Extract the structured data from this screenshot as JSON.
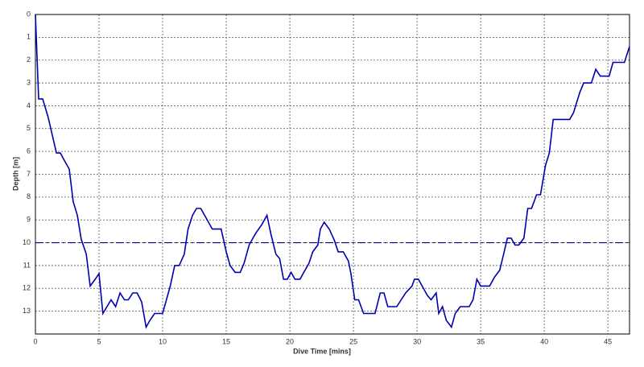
{
  "chart_data": {
    "type": "line",
    "xlabel": "Dive Time [mins]",
    "ylabel": "Depth [m]",
    "x": [
      0,
      0.25,
      0.57,
      1.0,
      1.65,
      1.96,
      2.28,
      2.66,
      2.97,
      3.3,
      3.6,
      4.0,
      4.3,
      4.7,
      5.0,
      5.3,
      5.95,
      6.3,
      6.65,
      7.0,
      7.3,
      7.65,
      8.0,
      8.35,
      8.7,
      9.0,
      9.37,
      10.0,
      10.6,
      10.95,
      11.3,
      11.7,
      12.0,
      12.35,
      12.66,
      13.0,
      13.4,
      13.9,
      14.6,
      15.0,
      15.3,
      15.7,
      16.1,
      16.4,
      16.8,
      17.3,
      17.8,
      18.2,
      18.5,
      18.9,
      19.2,
      19.5,
      19.8,
      20.1,
      20.4,
      20.8,
      21.1,
      21.5,
      21.8,
      22.2,
      22.4,
      22.7,
      23.1,
      23.5,
      23.8,
      24.2,
      24.6,
      24.8,
      25.1,
      25.4,
      25.8,
      26.7,
      27.1,
      27.4,
      27.7,
      28.4,
      29.1,
      29.6,
      29.8,
      30.1,
      30.4,
      30.8,
      31.1,
      31.5,
      31.7,
      32.0,
      32.3,
      32.7,
      33.0,
      33.4,
      34.1,
      34.4,
      34.7,
      35.0,
      35.7,
      36.1,
      36.5,
      36.8,
      37.1,
      37.4,
      37.7,
      38.0,
      38.4,
      38.7,
      39.0,
      39.4,
      39.7,
      40.1,
      40.4,
      40.7,
      42.0,
      42.3,
      42.8,
      43.1,
      43.7,
      44.05,
      44.4,
      45.1,
      45.4,
      46.3,
      46.7
    ],
    "values": [
      0,
      3.7,
      3.7,
      4.5,
      6.07,
      6.07,
      6.4,
      6.77,
      8.2,
      8.8,
      9.85,
      10.5,
      11.9,
      11.6,
      11.35,
      13.1,
      12.5,
      12.8,
      12.2,
      12.5,
      12.5,
      12.2,
      12.2,
      12.6,
      13.7,
      13.4,
      13.1,
      13.1,
      11.9,
      11.0,
      11.0,
      10.5,
      9.4,
      8.8,
      8.5,
      8.5,
      8.9,
      9.4,
      9.4,
      10.4,
      11.0,
      11.3,
      11.3,
      10.9,
      10.1,
      9.6,
      9.2,
      8.8,
      9.6,
      10.5,
      10.7,
      11.6,
      11.6,
      11.3,
      11.6,
      11.6,
      11.3,
      10.9,
      10.4,
      10.1,
      9.4,
      9.1,
      9.4,
      9.9,
      10.4,
      10.4,
      10.8,
      11.35,
      12.5,
      12.5,
      13.1,
      13.1,
      12.2,
      12.2,
      12.8,
      12.8,
      12.2,
      11.9,
      11.6,
      11.6,
      11.9,
      12.3,
      12.5,
      12.2,
      13.1,
      12.8,
      13.4,
      13.7,
      13.1,
      12.8,
      12.8,
      12.5,
      11.6,
      11.9,
      11.9,
      11.5,
      11.2,
      10.5,
      9.8,
      9.8,
      10.1,
      10.1,
      9.8,
      8.5,
      8.5,
      7.9,
      7.9,
      6.6,
      6.07,
      4.6,
      4.6,
      4.3,
      3.4,
      3.0,
      3.0,
      2.4,
      2.7,
      2.7,
      2.1,
      2.1,
      1.4
    ],
    "color": "#0000b0",
    "xlim": [
      0,
      46.7
    ],
    "xticks": [
      0,
      5,
      10,
      15,
      20,
      25,
      30,
      35,
      40,
      45
    ],
    "ylim": [
      0,
      14
    ],
    "yticks": [
      0,
      1,
      2,
      3,
      4,
      5,
      6,
      7,
      8,
      9,
      10,
      11,
      12,
      13
    ],
    "y_inverted": true,
    "grid": true,
    "reference_line": {
      "y": 10,
      "color": "#00008b"
    }
  }
}
